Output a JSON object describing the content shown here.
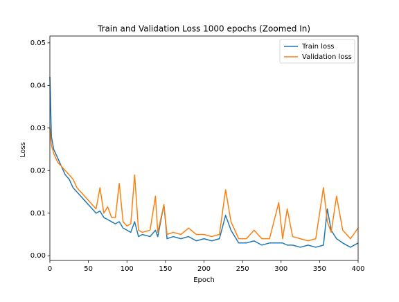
{
  "chart_data": {
    "type": "line",
    "title": "Train and Validation Loss 1000 epochs (Zoomed In)",
    "xlabel": "Epoch",
    "ylabel": "Loss",
    "x": [
      0,
      2,
      5,
      10,
      15,
      20,
      25,
      30,
      35,
      40,
      45,
      50,
      55,
      60,
      65,
      70,
      75,
      80,
      85,
      90,
      95,
      100,
      105,
      110,
      115,
      120,
      130,
      137,
      140,
      148,
      152,
      160,
      170,
      180,
      190,
      200,
      210,
      220,
      228,
      235,
      245,
      255,
      265,
      275,
      285,
      297,
      302,
      308,
      315,
      325,
      335,
      345,
      355,
      360,
      365,
      372,
      380,
      390,
      400
    ],
    "series": [
      {
        "name": "Train loss",
        "color": "#1f77b4",
        "values": [
          0.042,
          0.028,
          0.025,
          0.023,
          0.021,
          0.019,
          0.018,
          0.016,
          0.015,
          0.014,
          0.013,
          0.012,
          0.011,
          0.01,
          0.0105,
          0.009,
          0.0085,
          0.008,
          0.0075,
          0.008,
          0.0065,
          0.006,
          0.0055,
          0.008,
          0.0045,
          0.005,
          0.0045,
          0.006,
          0.0045,
          0.012,
          0.004,
          0.0045,
          0.004,
          0.0045,
          0.0035,
          0.004,
          0.0035,
          0.004,
          0.0095,
          0.006,
          0.003,
          0.003,
          0.0035,
          0.0025,
          0.003,
          0.003,
          0.003,
          0.0025,
          0.0025,
          0.002,
          0.0025,
          0.002,
          0.0025,
          0.011,
          0.006,
          0.004,
          0.003,
          0.002,
          0.003
        ]
      },
      {
        "name": "Validation loss",
        "color": "#ff7f0e",
        "values": [
          0.03,
          0.026,
          0.024,
          0.022,
          0.021,
          0.02,
          0.019,
          0.018,
          0.016,
          0.015,
          0.014,
          0.013,
          0.012,
          0.011,
          0.016,
          0.01,
          0.0115,
          0.009,
          0.009,
          0.017,
          0.008,
          0.007,
          0.0075,
          0.019,
          0.006,
          0.0055,
          0.006,
          0.014,
          0.0055,
          0.012,
          0.005,
          0.0055,
          0.005,
          0.0065,
          0.005,
          0.005,
          0.0045,
          0.005,
          0.0155,
          0.008,
          0.004,
          0.004,
          0.006,
          0.004,
          0.004,
          0.0125,
          0.004,
          0.011,
          0.0045,
          0.004,
          0.0035,
          0.004,
          0.016,
          0.008,
          0.0055,
          0.014,
          0.006,
          0.004,
          0.0065
        ]
      }
    ],
    "xlim": [
      0,
      400
    ],
    "xticks": [
      0,
      50,
      100,
      150,
      200,
      250,
      300,
      350,
      400
    ],
    "ylim": [
      -0.0011,
      0.0516
    ],
    "yticks": [
      {
        "value": 0,
        "label": "0.00"
      },
      0.01,
      0.02,
      0.03,
      0.04,
      0.05
    ],
    "legend": "upper right"
  }
}
